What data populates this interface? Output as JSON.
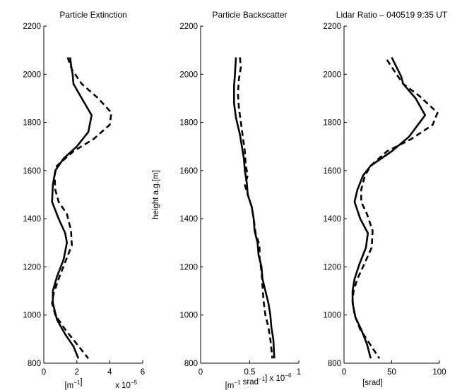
{
  "chart_data": [
    {
      "type": "line",
      "title": "Particle Extinction",
      "xlabel": "[m⁻¹]",
      "xscale_note": "x 10⁻⁵",
      "ylabel": "",
      "xlim": [
        0,
        6
      ],
      "ylim": [
        800,
        2200
      ],
      "xticks": [
        "0",
        "2",
        "4",
        "6"
      ],
      "yticks": [
        "800",
        "1000",
        "1200",
        "1400",
        "1600",
        "1800",
        "2000",
        "2200"
      ],
      "series": [
        {
          "style": "solid",
          "points": [
            [
              1.6,
              2070
            ],
            [
              1.65,
              2040
            ],
            [
              1.75,
              2000
            ],
            [
              1.8,
              1960
            ],
            [
              2.3,
              1900
            ],
            [
              2.9,
              1830
            ],
            [
              2.7,
              1760
            ],
            [
              2.0,
              1700
            ],
            [
              1.2,
              1650
            ],
            [
              0.7,
              1600
            ],
            [
              0.55,
              1540
            ],
            [
              0.5,
              1470
            ],
            [
              0.9,
              1400
            ],
            [
              1.3,
              1340
            ],
            [
              1.4,
              1300
            ],
            [
              1.2,
              1230
            ],
            [
              0.8,
              1160
            ],
            [
              0.55,
              1100
            ],
            [
              0.55,
              1050
            ],
            [
              0.8,
              980
            ],
            [
              1.3,
              920
            ],
            [
              1.8,
              870
            ],
            [
              2.1,
              820
            ]
          ]
        },
        {
          "style": "dashed",
          "points": [
            [
              1.45,
              2070
            ],
            [
              1.7,
              2020
            ],
            [
              2.3,
              1960
            ],
            [
              3.3,
              1900
            ],
            [
              4.1,
              1840
            ],
            [
              4.0,
              1790
            ],
            [
              3.0,
              1730
            ],
            [
              1.8,
              1680
            ],
            [
              0.8,
              1620
            ],
            [
              0.65,
              1580
            ],
            [
              0.7,
              1520
            ],
            [
              0.9,
              1470
            ],
            [
              1.4,
              1420
            ],
            [
              1.65,
              1350
            ],
            [
              1.7,
              1290
            ],
            [
              1.3,
              1220
            ],
            [
              0.9,
              1150
            ],
            [
              0.6,
              1090
            ],
            [
              0.5,
              1050
            ],
            [
              0.7,
              1000
            ],
            [
              1.3,
              940
            ],
            [
              2.0,
              880
            ],
            [
              2.7,
              820
            ]
          ]
        }
      ]
    },
    {
      "type": "line",
      "title": "Particle Backscatter",
      "xlabel": "[m⁻¹ srad⁻¹] x 10⁻⁶",
      "ylabel": "",
      "xlim": [
        0,
        1
      ],
      "ylim": [
        800,
        2200
      ],
      "xticks": [
        "0",
        "0.5",
        "1"
      ],
      "yticks": [
        "800",
        "1000",
        "1200",
        "1400",
        "1600",
        "1800",
        "2000",
        "2200"
      ],
      "series": [
        {
          "style": "solid",
          "points": [
            [
              0.36,
              2070
            ],
            [
              0.35,
              2000
            ],
            [
              0.34,
              1950
            ],
            [
              0.34,
              1880
            ],
            [
              0.36,
              1820
            ],
            [
              0.4,
              1750
            ],
            [
              0.42,
              1700
            ],
            [
              0.44,
              1650
            ],
            [
              0.45,
              1600
            ],
            [
              0.47,
              1550
            ],
            [
              0.48,
              1500
            ],
            [
              0.52,
              1450
            ],
            [
              0.54,
              1400
            ],
            [
              0.55,
              1350
            ],
            [
              0.58,
              1300
            ],
            [
              0.59,
              1250
            ],
            [
              0.62,
              1200
            ],
            [
              0.63,
              1150
            ],
            [
              0.66,
              1100
            ],
            [
              0.69,
              1050
            ],
            [
              0.71,
              1000
            ],
            [
              0.72,
              950
            ],
            [
              0.74,
              900
            ],
            [
              0.75,
              820
            ]
          ]
        },
        {
          "style": "dashed",
          "points": [
            [
              0.4,
              2070
            ],
            [
              0.41,
              2030
            ],
            [
              0.39,
              1980
            ],
            [
              0.38,
              1920
            ],
            [
              0.39,
              1860
            ],
            [
              0.41,
              1800
            ],
            [
              0.43,
              1740
            ],
            [
              0.45,
              1680
            ],
            [
              0.46,
              1620
            ],
            [
              0.48,
              1580
            ],
            [
              0.45,
              1540
            ],
            [
              0.48,
              1500
            ],
            [
              0.52,
              1450
            ],
            [
              0.54,
              1400
            ],
            [
              0.56,
              1340
            ],
            [
              0.6,
              1290
            ],
            [
              0.6,
              1240
            ],
            [
              0.62,
              1180
            ],
            [
              0.63,
              1120
            ],
            [
              0.64,
              1060
            ],
            [
              0.66,
              1000
            ],
            [
              0.69,
              950
            ],
            [
              0.71,
              900
            ],
            [
              0.73,
              820
            ]
          ]
        }
      ]
    },
    {
      "type": "line",
      "title": "Lidar Ratio – 040519 9:35 UT",
      "xlabel": "[srad]",
      "ylabel": "",
      "xlim": [
        0,
        100
      ],
      "ylim": [
        800,
        2200
      ],
      "xticks": [
        "0",
        "50",
        "100"
      ],
      "yticks": [
        "800",
        "1000",
        "1200",
        "1400",
        "1600",
        "1800",
        "2000",
        "2200"
      ],
      "series": [
        {
          "style": "solid",
          "points": [
            [
              50,
              2070
            ],
            [
              55,
              2030
            ],
            [
              60,
              1990
            ],
            [
              62,
              1960
            ],
            [
              75,
              1900
            ],
            [
              85,
              1830
            ],
            [
              68,
              1740
            ],
            [
              50,
              1680
            ],
            [
              28,
              1620
            ],
            [
              20,
              1580
            ],
            [
              14,
              1520
            ],
            [
              11,
              1470
            ],
            [
              17,
              1400
            ],
            [
              25,
              1340
            ],
            [
              23,
              1280
            ],
            [
              16,
              1210
            ],
            [
              11,
              1150
            ],
            [
              9,
              1100
            ],
            [
              9,
              1050
            ],
            [
              12,
              990
            ],
            [
              18,
              940
            ],
            [
              24,
              880
            ],
            [
              28,
              820
            ]
          ]
        },
        {
          "style": "dashed",
          "points": [
            [
              45,
              2060
            ],
            [
              55,
              2000
            ],
            [
              62,
              1960
            ],
            [
              79,
              1910
            ],
            [
              98,
              1840
            ],
            [
              93,
              1790
            ],
            [
              70,
              1730
            ],
            [
              45,
              1680
            ],
            [
              28,
              1620
            ],
            [
              22,
              1580
            ],
            [
              18,
              1520
            ],
            [
              18,
              1470
            ],
            [
              24,
              1420
            ],
            [
              30,
              1350
            ],
            [
              29,
              1280
            ],
            [
              21,
              1210
            ],
            [
              14,
              1150
            ],
            [
              10,
              1100
            ],
            [
              9,
              1060
            ],
            [
              11,
              1000
            ],
            [
              17,
              940
            ],
            [
              27,
              880
            ],
            [
              37,
              820
            ]
          ]
        }
      ]
    }
  ],
  "shared_ylabel": "height a.g.[m]"
}
